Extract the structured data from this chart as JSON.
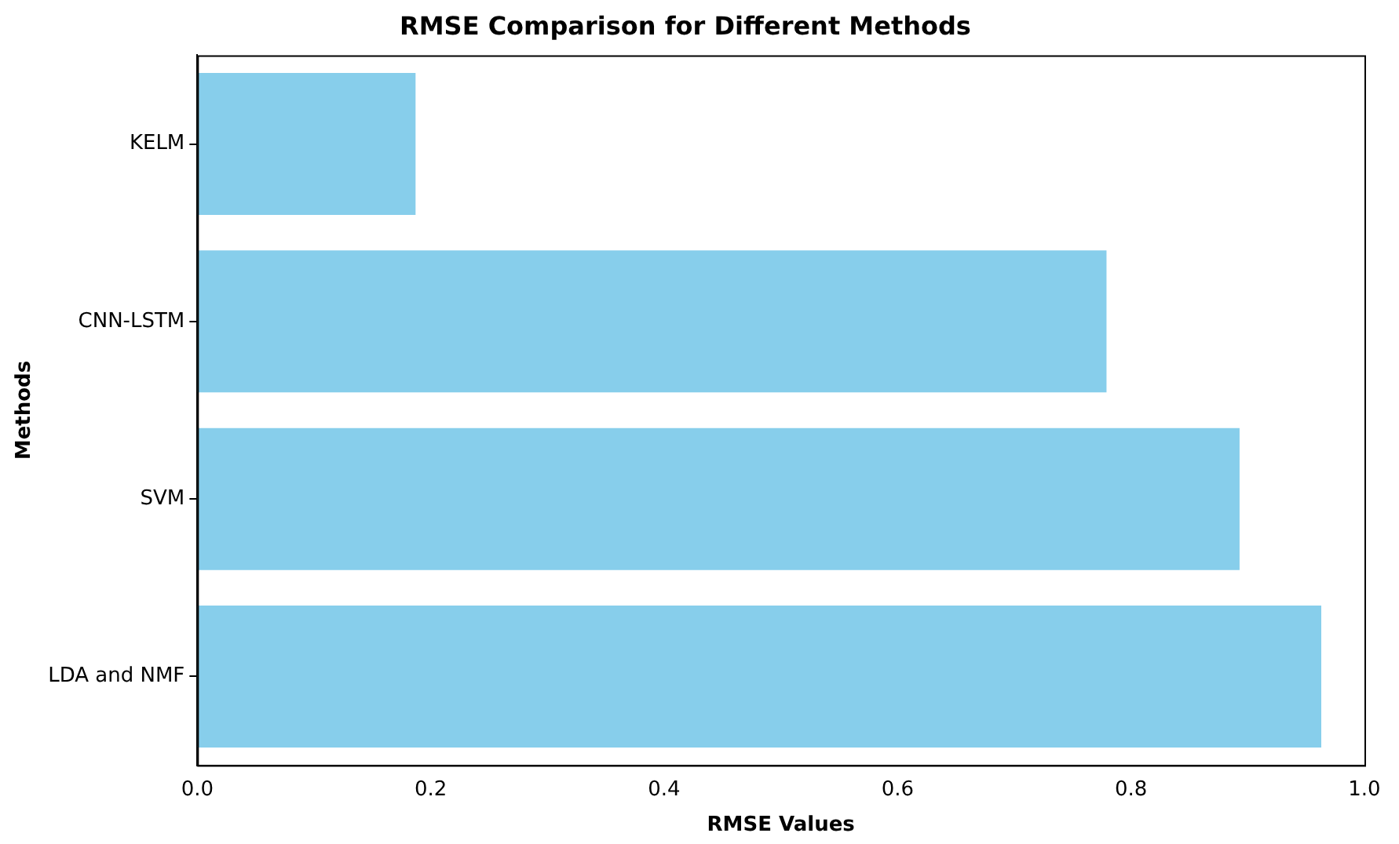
{
  "chart_data": {
    "type": "bar",
    "orientation": "horizontal",
    "title": "RMSE Comparison for Different Methods",
    "xlabel": "RMSE Values",
    "ylabel": "Methods",
    "categories": [
      "KELM",
      "CNN-LSTM",
      "SVM",
      "LDA and NMF"
    ],
    "values": [
      0.187,
      0.779,
      0.893,
      0.963
    ],
    "color": "#87ceeb",
    "xlim": [
      0,
      1
    ],
    "xticks": [
      {
        "value": 0,
        "label": "0.0"
      },
      {
        "value": 0.2,
        "label": "0.2"
      },
      {
        "value": 0.4,
        "label": "0.4"
      },
      {
        "value": 0.6,
        "label": "0.6"
      },
      {
        "value": 0.8,
        "label": "0.8"
      },
      {
        "value": 1,
        "label": "1.0"
      }
    ],
    "grid": false,
    "legend": false
  }
}
